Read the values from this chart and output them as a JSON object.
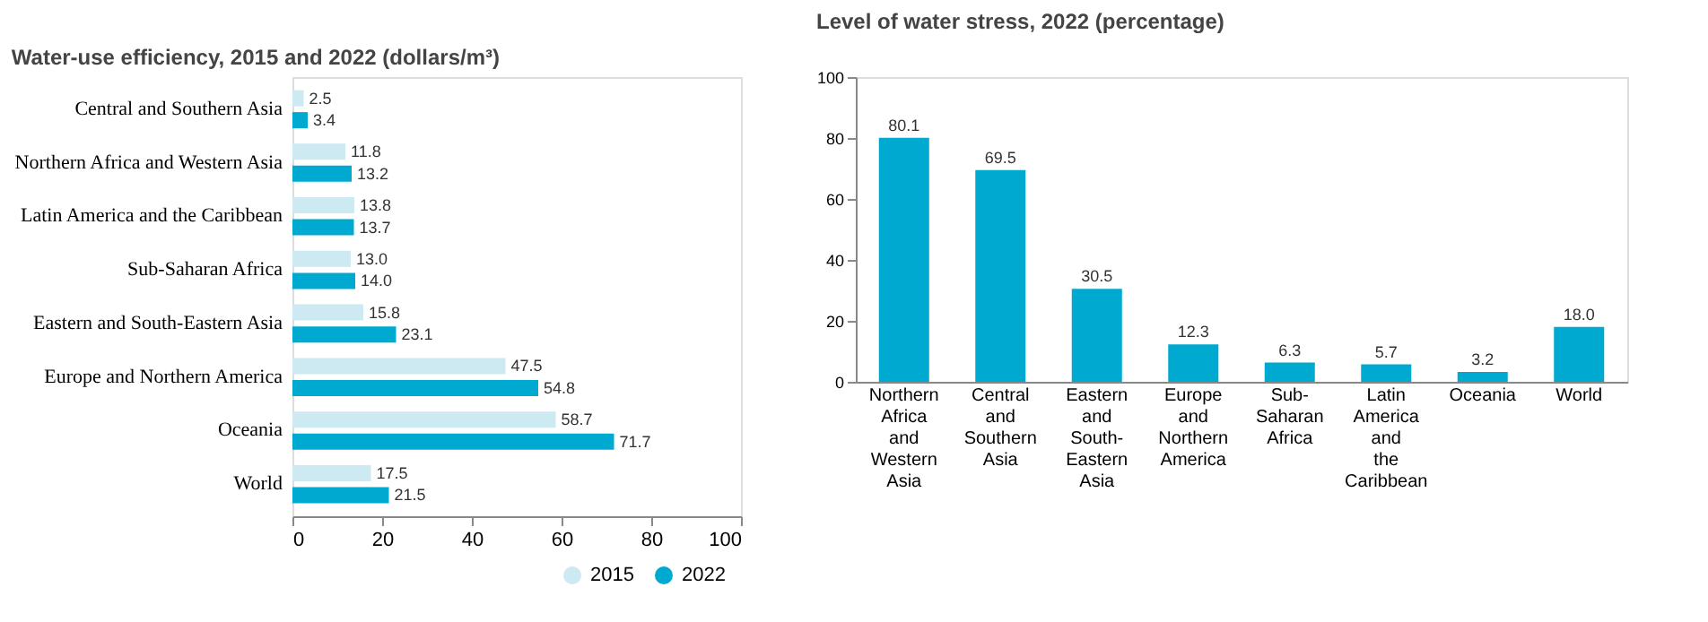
{
  "chart_data": [
    {
      "type": "bar",
      "orientation": "horizontal",
      "title": "Water-use efficiency, 2015 and 2022 (dollars/m³)",
      "categories": [
        "Central and Southern Asia",
        "Northern Africa and Western Asia",
        "Latin America and the Caribbean",
        "Sub-Saharan Africa",
        "Eastern and South-Eastern Asia",
        "Europe and Northern America",
        "Oceania",
        "World"
      ],
      "series": [
        {
          "name": "2015",
          "color": "#cde9f1",
          "values": [
            2.5,
            11.8,
            13.8,
            13.0,
            15.8,
            47.5,
            58.7,
            17.5
          ]
        },
        {
          "name": "2022",
          "color": "#00a9d0",
          "values": [
            3.4,
            13.2,
            13.7,
            14.0,
            23.1,
            54.8,
            71.7,
            21.5
          ]
        }
      ],
      "xlim": [
        0,
        100
      ],
      "xticks": [
        0,
        20,
        40,
        60,
        80,
        100
      ],
      "grid": false,
      "legend": "bottom right",
      "value_labels": [
        [
          "2.5",
          "11.8",
          "13.8",
          "13.0",
          "15.8",
          "47.5",
          "58.7",
          "17.5"
        ],
        [
          "3.4",
          "13.2",
          "13.7",
          "14.0",
          "23.1",
          "54.8",
          "71.7",
          "21.5"
        ]
      ]
    },
    {
      "type": "bar",
      "title": "Level of water stress, 2022 (percentage)",
      "categories": [
        "Northern Africa and Western Asia",
        "Central and Southern Asia",
        "Eastern and South-Eastern Asia",
        "Europe and Northern America",
        "Sub-Saharan Africa",
        "Latin America and the Caribbean",
        "Oceania",
        "World"
      ],
      "values": [
        80.1,
        69.5,
        30.5,
        12.3,
        6.3,
        5.7,
        3.2,
        18.0
      ],
      "color": "#00a9d0",
      "ylim": [
        0,
        100
      ],
      "yticks": [
        0,
        20,
        40,
        60,
        80,
        100
      ],
      "grid": false,
      "value_labels": [
        "80.1",
        "69.5",
        "30.5",
        "12.3",
        "6.3",
        "5.7",
        "3.2",
        "18.0"
      ]
    }
  ]
}
